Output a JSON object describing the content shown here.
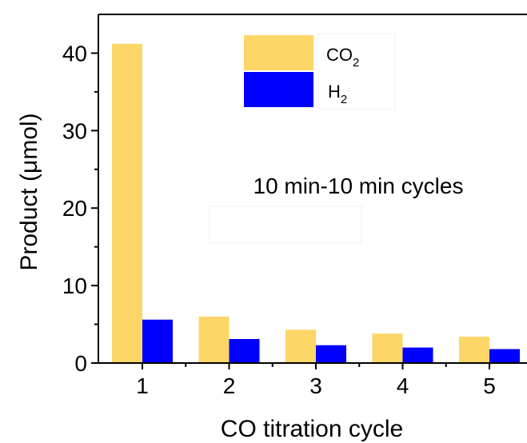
{
  "chart_data": {
    "type": "bar",
    "categories": [
      "1",
      "2",
      "3",
      "4",
      "5"
    ],
    "series": [
      {
        "name": "CO2",
        "name_main": "CO",
        "name_sub": "2",
        "color": "#FCD666",
        "values": [
          41.2,
          6.0,
          4.3,
          3.8,
          3.4
        ]
      },
      {
        "name": "H2",
        "name_main": "H",
        "name_sub": "2",
        "color": "#0000FF",
        "values": [
          5.6,
          3.1,
          2.3,
          2.0,
          1.8
        ]
      }
    ],
    "xlabel": "CO titration cycle",
    "ylabel": "Product (μmol)",
    "ylim": [
      0,
      45
    ],
    "yticks": [
      0,
      10,
      20,
      30,
      40
    ],
    "annotation": "10 min-10 min cycles",
    "legend_position": "top-right",
    "grid": false
  }
}
